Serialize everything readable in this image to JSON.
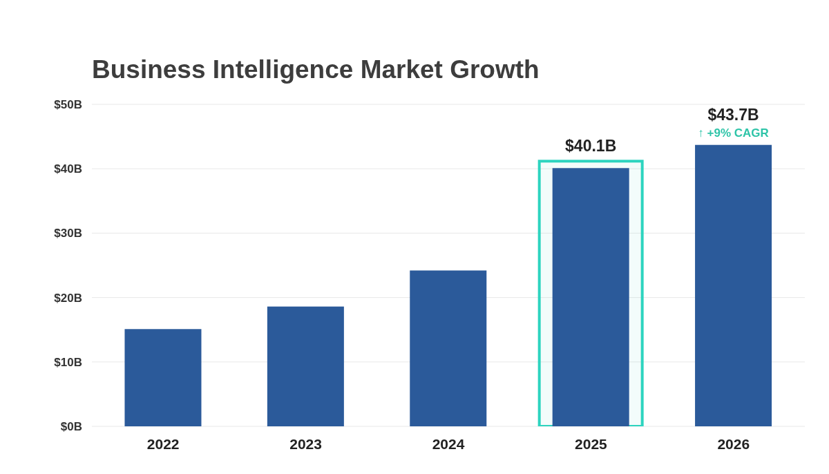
{
  "chart_data": {
    "type": "bar",
    "title": "Business Intelligence Market Growth",
    "categories": [
      "2022",
      "2023",
      "2024",
      "2025",
      "2026"
    ],
    "values": [
      15.1,
      18.6,
      24.2,
      40.1,
      43.7
    ],
    "color": "#2b5a9a",
    "value_labels": [
      null,
      null,
      null,
      "$40.1B",
      "$43.7B"
    ],
    "ylim": [
      0,
      50
    ],
    "yticks": [
      {
        "value": 0,
        "label": "$0B"
      },
      {
        "value": 10,
        "label": "$10B"
      },
      {
        "value": 20,
        "label": "$20B"
      },
      {
        "value": 30,
        "label": "$30B"
      },
      {
        "value": 40,
        "label": "$40B"
      },
      {
        "value": 50,
        "label": "$50B"
      }
    ],
    "grid": "y",
    "bands": [
      {
        "axis": "x",
        "from": "2025",
        "to": "2025",
        "color": "#2dd4bf"
      }
    ],
    "annotations": [
      {
        "text": "↑ +9% CAGR",
        "x": "2026",
        "y": 43.7
      }
    ]
  }
}
